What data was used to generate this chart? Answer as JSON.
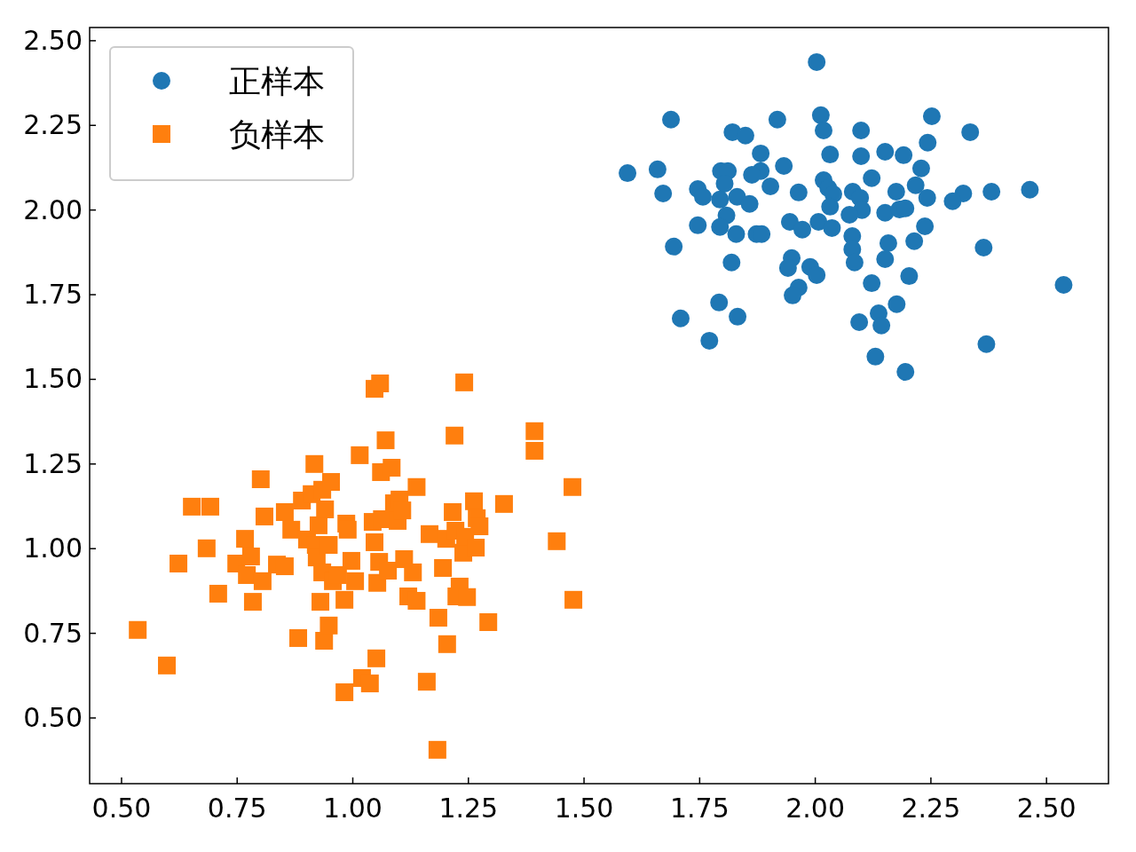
{
  "chart_data": {
    "type": "scatter",
    "xlim": [
      0.431,
      2.634
    ],
    "ylim": [
      0.306,
      2.539
    ],
    "xticks": [
      {
        "value": 0.5,
        "label": "0.50"
      },
      {
        "value": 0.75,
        "label": "0.75"
      },
      {
        "value": 1.0,
        "label": "1.00"
      },
      {
        "value": 1.25,
        "label": "1.25"
      },
      {
        "value": 1.5,
        "label": "1.50"
      },
      {
        "value": 1.75,
        "label": "1.75"
      },
      {
        "value": 2.0,
        "label": "2.00"
      },
      {
        "value": 2.25,
        "label": "2.25"
      },
      {
        "value": 2.5,
        "label": "2.50"
      }
    ],
    "yticks": [
      {
        "value": 0.5,
        "label": "0.50"
      },
      {
        "value": 0.75,
        "label": "0.75"
      },
      {
        "value": 1.0,
        "label": "1.00"
      },
      {
        "value": 1.25,
        "label": "1.25"
      },
      {
        "value": 1.5,
        "label": "1.50"
      },
      {
        "value": 1.75,
        "label": "1.75"
      },
      {
        "value": 2.0,
        "label": "2.00"
      },
      {
        "value": 2.25,
        "label": "2.25"
      },
      {
        "value": 2.5,
        "label": "2.50"
      }
    ],
    "grid": false,
    "legend": "top left",
    "series": [
      {
        "name": "正样本",
        "color": "#1f77b4",
        "marker": "circle",
        "x": [
          2.003,
          1.688,
          2.012,
          2.252,
          1.918,
          1.821,
          1.849,
          2.018,
          2.099,
          2.335,
          2.243,
          2.032,
          2.151,
          2.191,
          1.882,
          2.099,
          1.594,
          1.659,
          1.796,
          1.811,
          1.882,
          1.932,
          2.229,
          1.863,
          2.018,
          2.122,
          1.903,
          2.217,
          1.671,
          1.746,
          1.757,
          1.804,
          1.794,
          1.831,
          1.858,
          1.964,
          2.028,
          2.039,
          2.081,
          2.097,
          2.175,
          2.242,
          2.32,
          2.381,
          2.464,
          2.297,
          2.032,
          2.101,
          2.151,
          2.182,
          2.195,
          2.074,
          1.808,
          1.746,
          1.794,
          1.945,
          2.007,
          2.036,
          1.972,
          2.237,
          1.829,
          1.873,
          1.884,
          2.08,
          2.158,
          2.214,
          1.694,
          2.08,
          2.364,
          1.949,
          2.085,
          2.151,
          1.819,
          1.941,
          1.989,
          2.003,
          2.203,
          2.122,
          2.537,
          1.964,
          1.951,
          1.792,
          2.176,
          1.709,
          1.832,
          2.137,
          2.095,
          2.143,
          1.771,
          2.37,
          2.13,
          2.195
        ],
        "values": [
          2.437,
          2.267,
          2.28,
          2.277,
          2.267,
          2.23,
          2.22,
          2.235,
          2.235,
          2.23,
          2.199,
          2.164,
          2.172,
          2.162,
          2.167,
          2.159,
          2.109,
          2.12,
          2.115,
          2.115,
          2.115,
          2.13,
          2.123,
          2.104,
          2.088,
          2.094,
          2.07,
          2.073,
          2.049,
          2.062,
          2.039,
          2.078,
          2.031,
          2.039,
          2.018,
          2.052,
          2.065,
          2.047,
          2.054,
          2.036,
          2.054,
          2.036,
          2.049,
          2.054,
          2.06,
          2.026,
          2.01,
          2.0,
          1.992,
          2.002,
          2.005,
          1.986,
          1.984,
          1.955,
          1.95,
          1.965,
          1.965,
          1.947,
          1.942,
          1.952,
          1.929,
          1.929,
          1.929,
          1.923,
          1.902,
          1.908,
          1.892,
          1.884,
          1.889,
          1.858,
          1.845,
          1.855,
          1.845,
          1.829,
          1.832,
          1.808,
          1.805,
          1.784,
          1.779,
          1.771,
          1.748,
          1.727,
          1.722,
          1.68,
          1.685,
          1.695,
          1.669,
          1.659,
          1.614,
          1.604,
          1.567,
          1.522
        ]
      },
      {
        "name": "负样本",
        "color": "#ff7f0e",
        "marker": "square",
        "x": [
          0.535,
          0.598,
          0.623,
          0.652,
          0.692,
          0.684,
          0.709,
          0.748,
          0.767,
          0.771,
          0.784,
          0.78,
          0.801,
          0.805,
          0.809,
          0.836,
          0.853,
          0.853,
          0.867,
          0.882,
          0.89,
          0.901,
          0.911,
          0.917,
          0.92,
          0.926,
          0.934,
          0.922,
          0.93,
          0.938,
          0.94,
          0.948,
          0.934,
          0.948,
          0.953,
          0.957,
          0.968,
          0.982,
          0.982,
          0.986,
          0.989,
          0.997,
          1.005,
          1.015,
          1.02,
          1.037,
          1.043,
          1.047,
          1.059,
          1.051,
          1.047,
          1.053,
          1.057,
          1.063,
          1.061,
          1.071,
          1.076,
          1.084,
          1.089,
          1.097,
          1.101,
          1.107,
          1.111,
          1.12,
          1.13,
          1.138,
          1.138,
          1.16,
          1.166,
          1.183,
          1.185,
          1.195,
          1.204,
          1.202,
          1.216,
          1.22,
          1.222,
          1.231,
          1.224,
          1.241,
          1.247,
          1.239,
          1.243,
          1.262,
          1.268,
          1.274,
          1.266,
          1.293,
          1.327,
          1.393,
          1.393,
          1.441,
          1.475,
          1.477
        ],
        "values": [
          0.76,
          0.655,
          0.956,
          1.124,
          1.124,
          1.001,
          0.867,
          0.956,
          1.029,
          0.922,
          0.843,
          0.977,
          1.205,
          0.904,
          1.095,
          0.953,
          0.948,
          1.108,
          1.056,
          0.736,
          1.142,
          1.027,
          1.161,
          1.25,
          1.011,
          1.069,
          1.174,
          0.974,
          0.843,
          0.728,
          1.116,
          0.773,
          0.93,
          1.011,
          1.197,
          0.904,
          0.922,
          0.849,
          0.576,
          1.074,
          1.056,
          0.964,
          0.904,
          1.276,
          0.618,
          0.602,
          1.079,
          1.472,
          1.488,
          0.676,
          1.019,
          0.899,
          0.961,
          1.087,
          1.226,
          1.32,
          0.935,
          1.239,
          1.134,
          1.082,
          1.145,
          1.113,
          0.969,
          0.859,
          0.93,
          0.846,
          1.182,
          0.607,
          1.043,
          0.406,
          0.796,
          0.943,
          0.718,
          1.029,
          1.108,
          1.334,
          1.053,
          0.888,
          0.859,
          1.491,
          0.857,
          0.988,
          1.035,
          1.14,
          1.09,
          1.066,
          1.003,
          0.783,
          1.132,
          1.347,
          1.289,
          1.022,
          1.182,
          0.849
        ]
      }
    ]
  }
}
